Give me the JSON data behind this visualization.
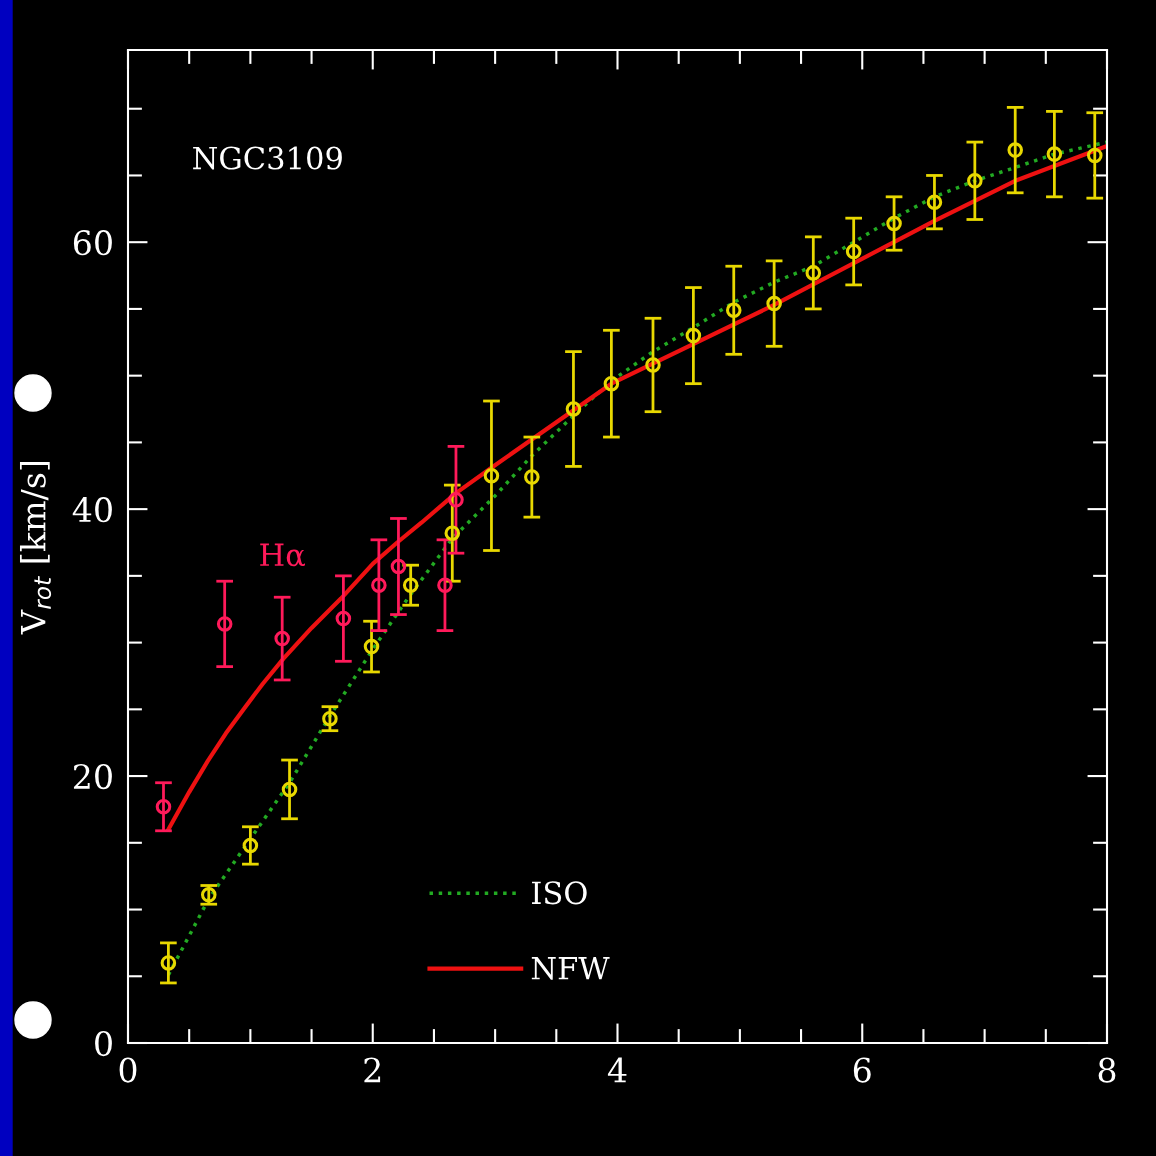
{
  "chart_data": {
    "type": "scatter",
    "ylabel": "V$_{rot}$ [km/s]",
    "annotations": [
      "NGC3109"
    ],
    "xlim": [
      0,
      8
    ],
    "ylim": [
      0,
      74.4
    ],
    "xticks": [
      0,
      {
        "value": 0.5,
        "label": null
      },
      {
        "value": 1,
        "label": null
      },
      {
        "value": 1.5,
        "label": null
      },
      2,
      {
        "value": 2.5,
        "label": null
      },
      {
        "value": 3,
        "label": null
      },
      {
        "value": 3.5,
        "label": null
      },
      4,
      {
        "value": 4.5,
        "label": null
      },
      {
        "value": 5,
        "label": null
      },
      {
        "value": 5.5,
        "label": null
      },
      6,
      {
        "value": 6.5,
        "label": null
      },
      {
        "value": 7,
        "label": null
      },
      {
        "value": 7.5,
        "label": null
      },
      8
    ],
    "yticks": [
      0,
      {
        "value": 5,
        "label": null
      },
      {
        "value": 10,
        "label": null
      },
      {
        "value": 15,
        "label": null
      },
      20,
      {
        "value": 25,
        "label": null
      },
      {
        "value": 30,
        "label": null
      },
      {
        "value": 35,
        "label": null
      },
      40,
      {
        "value": 45,
        "label": null
      },
      {
        "value": 50,
        "label": null
      },
      {
        "value": 55,
        "label": null
      },
      60,
      {
        "value": 65,
        "label": null
      },
      {
        "value": 70,
        "label": null
      }
    ],
    "grid": false,
    "legend": "bottom",
    "series": [
      {
        "type": "line",
        "name": "ISO",
        "color": "#22aa22",
        "line_style": "dotted",
        "marker": "none",
        "x": [
          0.33,
          0.66,
          1.0,
          1.32,
          1.65,
          2.0,
          2.3,
          2.65,
          3.0,
          3.3,
          3.64,
          3.95,
          4.29,
          4.62,
          4.95,
          5.28,
          5.6,
          5.93,
          6.26,
          6.59,
          6.92,
          7.25,
          7.57,
          8.0
        ],
        "values": [
          5.1,
          10.8,
          15.3,
          19.5,
          24.5,
          29.5,
          33.5,
          37.8,
          41.0,
          44.0,
          47.0,
          49.6,
          51.8,
          53.6,
          55.5,
          57.0,
          58.2,
          60.0,
          61.8,
          63.4,
          64.6,
          65.6,
          66.6,
          67.5
        ]
      },
      {
        "type": "line",
        "name": "NFW",
        "color": "#ee1111",
        "line_style": "solid",
        "marker": "none",
        "x": [
          0.33,
          0.5,
          0.65,
          0.8,
          0.96,
          1.1,
          1.27,
          1.5,
          1.74,
          2.0,
          2.2,
          2.4,
          2.68,
          2.97,
          3.95,
          5.28,
          6.59,
          7.25,
          8.0
        ],
        "values": [
          16.0,
          18.8,
          21.1,
          23.2,
          25.2,
          26.9,
          28.8,
          31.1,
          33.3,
          35.9,
          37.5,
          39.0,
          41.2,
          43.1,
          49.4,
          55.3,
          61.6,
          64.6,
          67.2
        ]
      },
      {
        "color": "#e8d800",
        "marker": "circle",
        "x": [
          0.33,
          0.66,
          1.0,
          1.32,
          1.65,
          1.99,
          2.31,
          2.65,
          2.97,
          3.3,
          3.64,
          3.95,
          4.29,
          4.62,
          4.95,
          5.28,
          5.6,
          5.93,
          6.26,
          6.59,
          6.92,
          7.25,
          7.57,
          7.9
        ],
        "values": [
          6.0,
          11.1,
          14.8,
          19.0,
          24.3,
          29.7,
          34.3,
          38.2,
          42.5,
          42.4,
          47.5,
          49.4,
          50.8,
          53.0,
          54.9,
          55.4,
          57.7,
          59.3,
          61.4,
          63.0,
          64.6,
          66.9,
          66.6,
          66.5
        ],
        "errors": [
          1.5,
          0.7,
          1.4,
          2.2,
          0.9,
          1.9,
          1.5,
          3.6,
          5.6,
          3.0,
          4.3,
          4.0,
          3.5,
          3.6,
          3.3,
          3.2,
          2.7,
          2.5,
          2.0,
          2.0,
          2.9,
          3.2,
          3.2,
          3.2
        ]
      },
      {
        "name": "Hα",
        "color": "#ff1a5a",
        "marker": "circle",
        "x": [
          0.29,
          0.79,
          1.26,
          1.76,
          2.05,
          2.21,
          2.59,
          2.68
        ],
        "values": [
          17.7,
          31.4,
          30.3,
          31.8,
          34.3,
          35.7,
          34.3,
          40.7
        ],
        "errors": [
          1.8,
          3.2,
          3.1,
          3.2,
          3.4,
          3.6,
          3.4,
          4.0
        ]
      }
    ]
  }
}
